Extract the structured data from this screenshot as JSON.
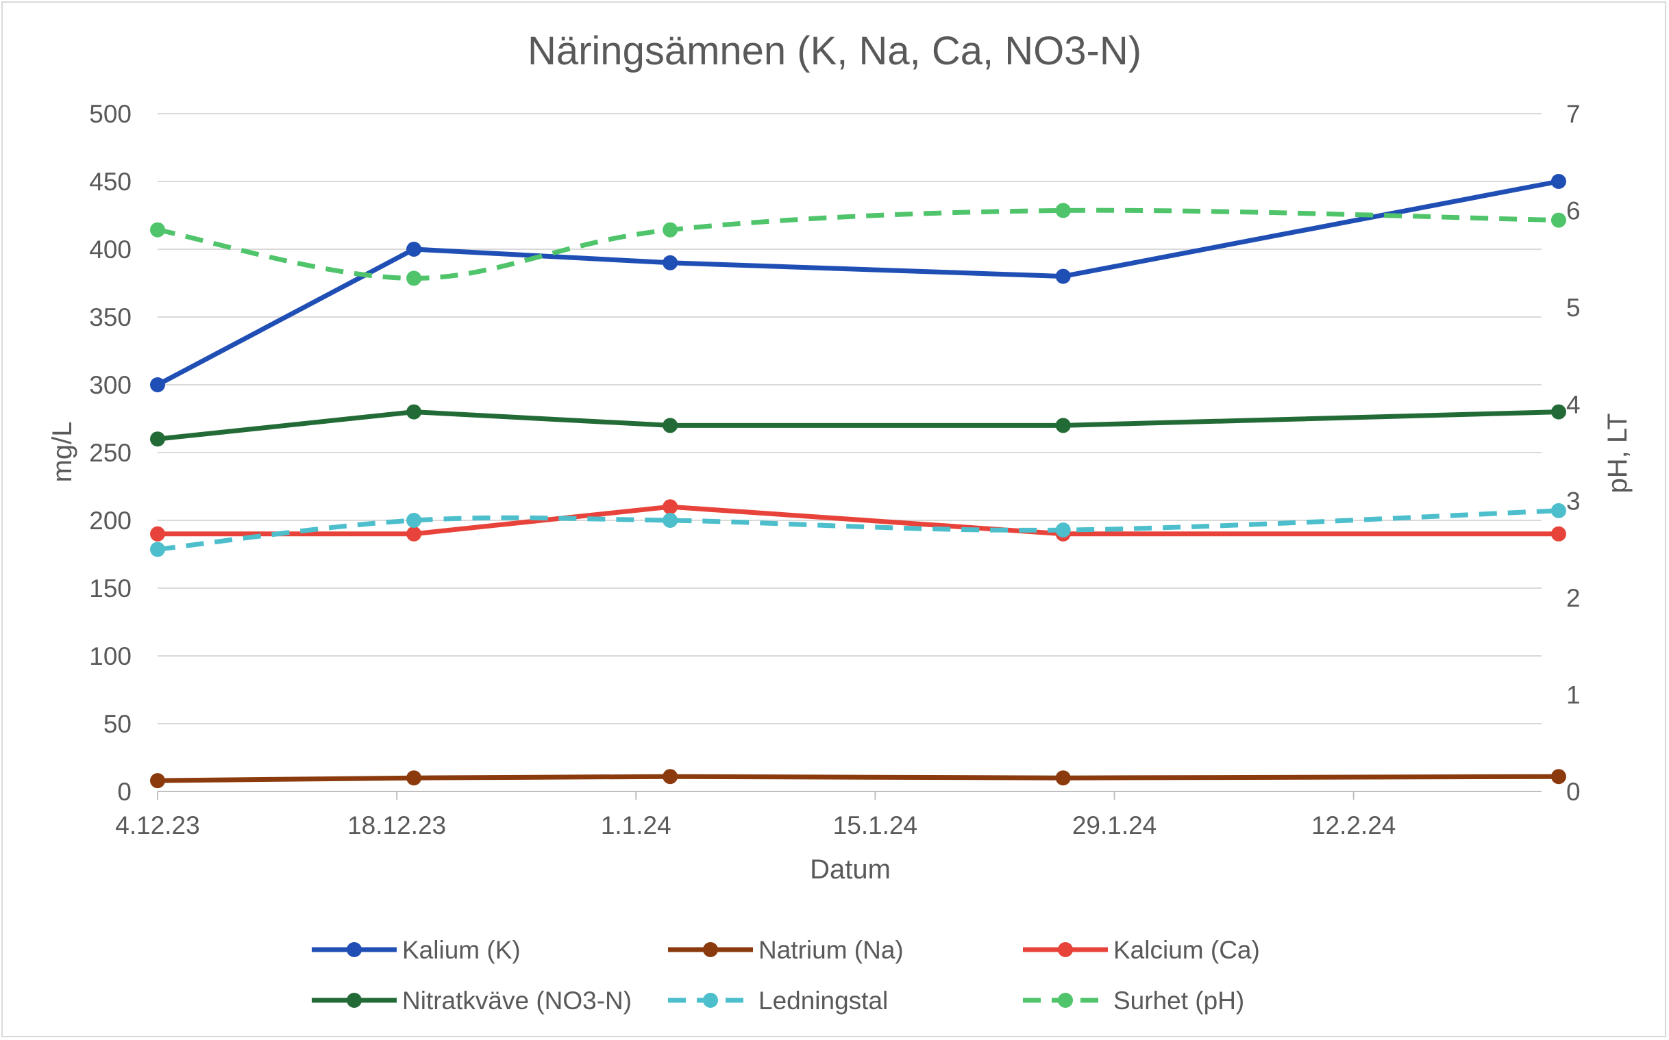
{
  "chart_data": {
    "type": "line",
    "title": "Näringsämnen (K, Na, Ca, NO3-N)",
    "xlabel": "Datum",
    "ylabel": "mg/L",
    "y2label": "pH, LT",
    "x_tick_labels": [
      "4.12.23",
      "18.12.23",
      "1.1.24",
      "15.1.24",
      "29.1.24",
      "12.2.24"
    ],
    "x_ticks": [
      "2023-12-04",
      "2023-12-18",
      "2024-01-01",
      "2024-01-15",
      "2024-01-29",
      "2024-02-12"
    ],
    "xlim": [
      "2023-12-04",
      "2024-02-23"
    ],
    "ylim": [
      0,
      500
    ],
    "y_ticks": [
      0,
      50,
      100,
      150,
      200,
      250,
      300,
      350,
      400,
      450,
      500
    ],
    "y2lim": [
      0,
      7
    ],
    "y2_ticks": [
      0,
      1,
      2,
      3,
      4,
      5,
      6,
      7
    ],
    "grid": true,
    "legend_position": "bottom",
    "x": [
      "2023-12-04",
      "2023-12-19",
      "2024-01-03",
      "2024-01-26",
      "2024-02-24"
    ],
    "series": [
      {
        "name": "Kalium (K)",
        "axis": "left",
        "color": "#1f4eb4",
        "dashed": false,
        "values": [
          300,
          400,
          390,
          380,
          450
        ]
      },
      {
        "name": "Natrium (Na)",
        "axis": "left",
        "color": "#8b3a0e",
        "dashed": false,
        "values": [
          8,
          10,
          11,
          10,
          11
        ]
      },
      {
        "name": "Kalcium (Ca)",
        "axis": "left",
        "color": "#e8433a",
        "dashed": false,
        "values": [
          190,
          190,
          210,
          190,
          190
        ]
      },
      {
        "name": "Nitratkväve (NO3-N)",
        "axis": "left",
        "color": "#236b36",
        "dashed": false,
        "values": [
          260,
          280,
          270,
          270,
          280
        ]
      },
      {
        "name": "Ledningstal",
        "axis": "right",
        "color": "#4dbfcc",
        "dashed": true,
        "values": [
          2.5,
          2.8,
          2.8,
          2.7,
          2.9
        ]
      },
      {
        "name": "Surhet (pH)",
        "axis": "right",
        "color": "#4fc46b",
        "dashed": true,
        "values": [
          5.8,
          5.3,
          5.8,
          6.0,
          5.9
        ]
      }
    ]
  }
}
